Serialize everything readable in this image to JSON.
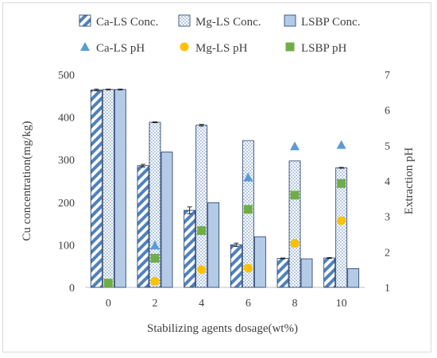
{
  "chart_data": {
    "type": "bar",
    "categories": [
      "0",
      "2",
      "4",
      "6",
      "8",
      "10"
    ],
    "series": [
      {
        "name": "Ca-LS Conc.",
        "kind": "bar",
        "axis": "left",
        "pattern": "diagonal-stripes",
        "color": "#4f81bd",
        "values": [
          464,
          286,
          181,
          100,
          68,
          69
        ],
        "errors": [
          2,
          3,
          8,
          4,
          1,
          1
        ]
      },
      {
        "name": "Mg-LS Conc.",
        "kind": "bar",
        "axis": "left",
        "pattern": "dots",
        "color": "#4f81bd",
        "values": [
          465,
          388,
          381,
          345,
          297,
          281
        ],
        "errors": [
          1,
          1,
          2,
          0,
          0,
          1
        ]
      },
      {
        "name": "LSBP Conc.",
        "kind": "bar",
        "axis": "left",
        "pattern": "solid",
        "color": "#b4cbe8",
        "values": [
          465,
          318,
          199,
          119,
          67,
          44
        ],
        "errors": [
          1,
          0,
          0,
          0,
          0,
          0
        ]
      },
      {
        "name": "Ca-LS pH",
        "kind": "marker",
        "axis": "right",
        "marker": "triangle",
        "color": "#5b9bd5",
        "values": [
          null,
          2.18,
          2.62,
          4.1,
          4.98,
          5.02
        ]
      },
      {
        "name": "Mg-LS pH",
        "kind": "marker",
        "axis": "right",
        "marker": "circle",
        "color": "#ffc000",
        "values": [
          null,
          1.17,
          1.5,
          1.54,
          2.24,
          2.88
        ]
      },
      {
        "name": "LSBP pH",
        "kind": "marker",
        "axis": "right",
        "marker": "square",
        "color": "#70ad47",
        "values": [
          1.12,
          1.82,
          2.6,
          3.2,
          3.6,
          3.93
        ]
      }
    ],
    "xlabel": "Stabilizing agents dosage(wt%)",
    "ylabel": "Cu concentration(mg/kg)",
    "y2label": "Extraction pH",
    "ylim": [
      0,
      500
    ],
    "y2lim": [
      1,
      7
    ],
    "yticks": [
      "0",
      "100",
      "200",
      "300",
      "400",
      "500"
    ],
    "y2ticks": [
      "1",
      "2",
      "3",
      "4",
      "5",
      "6",
      "7"
    ],
    "grid": false,
    "legend_position": "top"
  }
}
